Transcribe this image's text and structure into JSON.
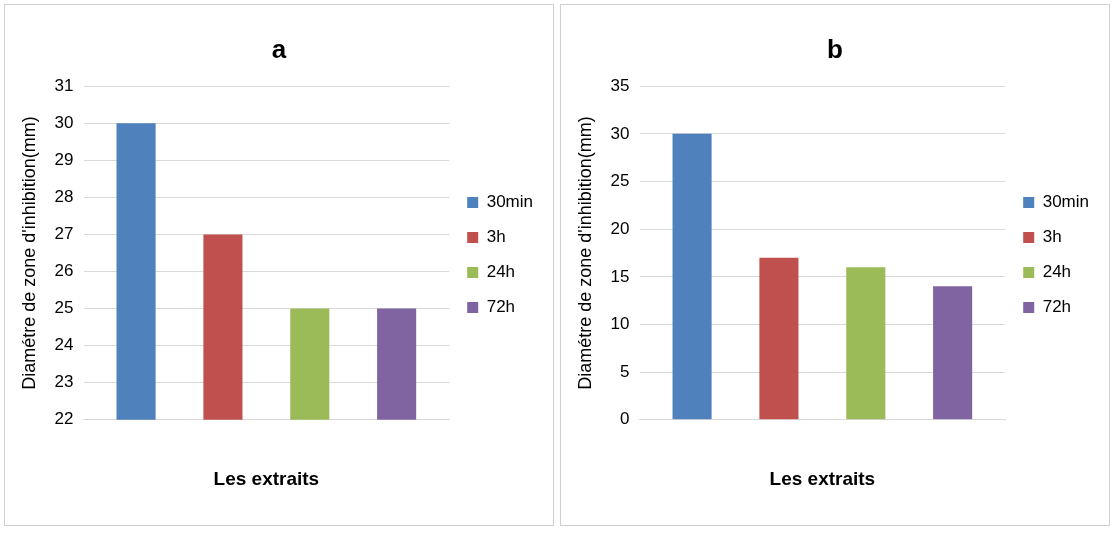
{
  "chart_data": [
    {
      "type": "bar",
      "title": "a",
      "xlabel": "Les extraits",
      "ylabel": "Diamétre de zone d'inhibition(mm)",
      "categories": [
        null
      ],
      "series": [
        {
          "name": "30min",
          "color": "#4f81bd",
          "values": [
            30
          ]
        },
        {
          "name": "3h",
          "color": "#c0504d",
          "values": [
            27
          ]
        },
        {
          "name": "24h",
          "color": "#9bbb59",
          "values": [
            25
          ]
        },
        {
          "name": "72h",
          "color": "#8064a2",
          "values": [
            25
          ]
        }
      ],
      "ylim": [
        22,
        31
      ],
      "yticks": [
        22,
        23,
        24,
        25,
        26,
        27,
        28,
        29,
        30,
        31
      ],
      "grid": "y",
      "legend": "right"
    },
    {
      "type": "bar",
      "title": "b",
      "xlabel": "Les extraits",
      "ylabel": "Diamétre de zone d'inhibition(mm)",
      "categories": [
        null
      ],
      "series": [
        {
          "name": "30min",
          "color": "#4f81bd",
          "values": [
            30
          ]
        },
        {
          "name": "3h",
          "color": "#c0504d",
          "values": [
            17
          ]
        },
        {
          "name": "24h",
          "color": "#9bbb59",
          "values": [
            16
          ]
        },
        {
          "name": "72h",
          "color": "#8064a2",
          "values": [
            14
          ]
        }
      ],
      "ylim": [
        0,
        35
      ],
      "yticks": [
        0,
        5,
        10,
        15,
        20,
        25,
        30,
        35
      ],
      "grid": "y",
      "legend": "right"
    }
  ]
}
